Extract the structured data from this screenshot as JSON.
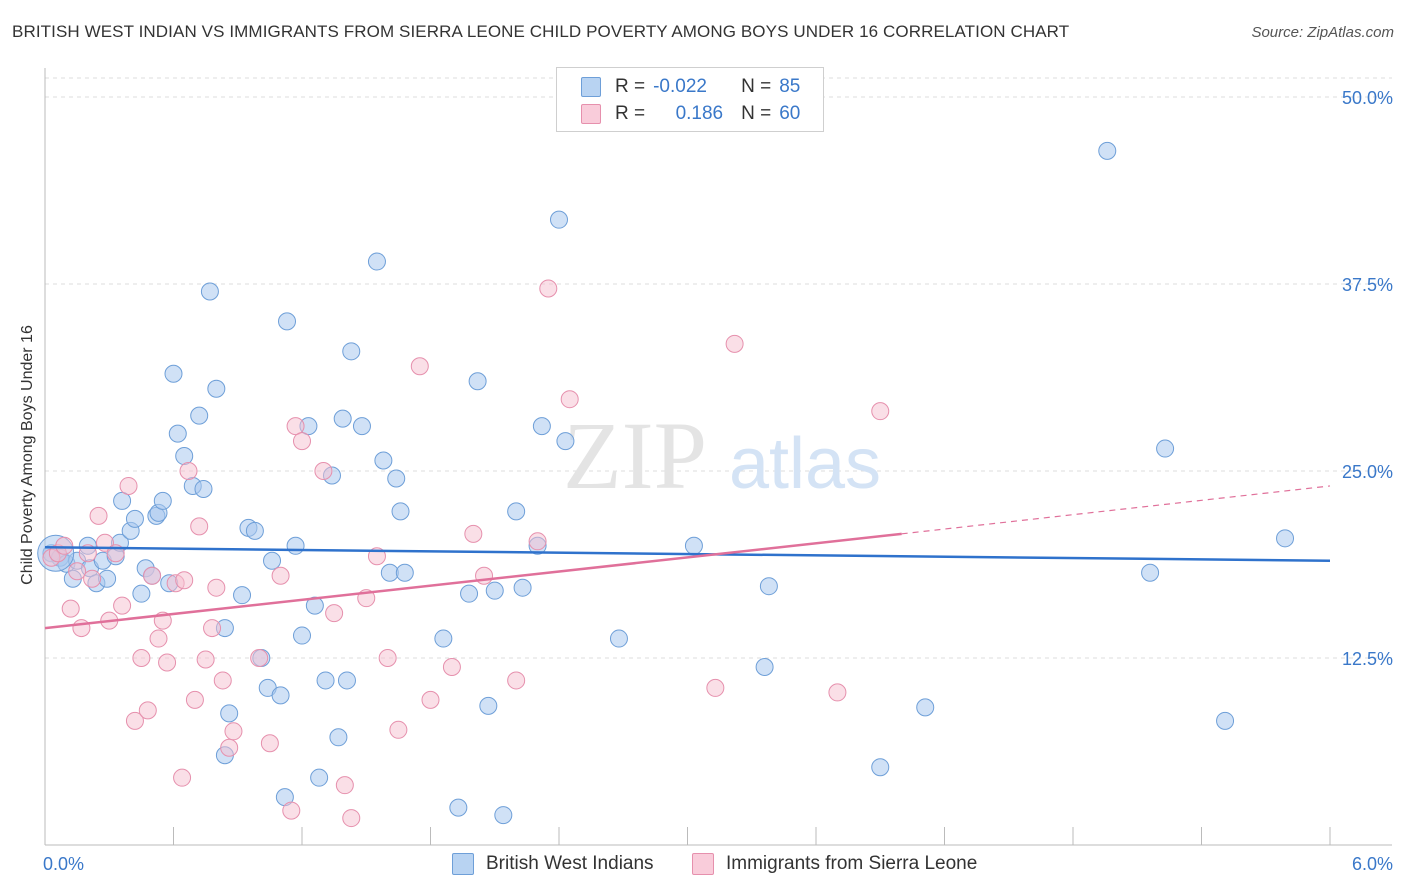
{
  "title": "BRITISH WEST INDIAN VS IMMIGRANTS FROM SIERRA LEONE CHILD POVERTY AMONG BOYS UNDER 16 CORRELATION CHART",
  "source": "Source: ZipAtlas.com",
  "watermark": {
    "zip": "ZIP",
    "atlas": "atlas"
  },
  "legend": {
    "rows": [
      {
        "r_label": "R =",
        "r_value": "-0.022",
        "n_label": "N =",
        "n_value": "85"
      },
      {
        "r_label": "R =",
        "r_value": "0.186",
        "n_label": "N =",
        "n_value": "60"
      }
    ]
  },
  "bottom_legend": {
    "series1": "British West Indians",
    "series2": "Immigrants from Sierra Leone"
  },
  "chart_data": {
    "type": "scatter",
    "title": "BRITISH WEST INDIAN VS IMMIGRANTS FROM SIERRA LEONE CHILD POVERTY AMONG BOYS UNDER 16 CORRELATION CHART",
    "xlabel": "",
    "ylabel": "Child Poverty Among Boys Under 16",
    "xlim": [
      0,
      6
    ],
    "ylim": [
      0,
      50
    ],
    "x_tick_labels": [
      "0.0%",
      "6.0%"
    ],
    "y_ticks": [
      12.5,
      25.0,
      37.5,
      50.0
    ],
    "y_tick_labels": [
      "12.5%",
      "25.0%",
      "37.5%",
      "50.0%"
    ],
    "grid": true,
    "colors": {
      "series1": "#a9c8ee",
      "series1_edge": "#6e9fd8",
      "series1_line": "#2f72cc",
      "series2": "#f6bfd0",
      "series2_edge": "#e690ad",
      "series2_line": "#e0709a"
    },
    "series": [
      {
        "name": "British West Indians",
        "r": -0.022,
        "n": 85,
        "trend": {
          "x": [
            0,
            6
          ],
          "y": [
            19.9,
            19.0
          ]
        },
        "points": [
          [
            0.03,
            19.5
          ],
          [
            0.07,
            19.2
          ],
          [
            0.1,
            18.8
          ],
          [
            0.13,
            17.8
          ],
          [
            0.15,
            19.0
          ],
          [
            0.2,
            20.0
          ],
          [
            0.21,
            18.5
          ],
          [
            0.24,
            17.5
          ],
          [
            0.27,
            19.0
          ],
          [
            0.29,
            17.8
          ],
          [
            0.33,
            19.3
          ],
          [
            0.35,
            20.2
          ],
          [
            0.36,
            23.0
          ],
          [
            0.4,
            21.0
          ],
          [
            0.42,
            21.8
          ],
          [
            0.45,
            16.8
          ],
          [
            0.47,
            18.5
          ],
          [
            0.5,
            18.0
          ],
          [
            0.52,
            22.0
          ],
          [
            0.53,
            22.2
          ],
          [
            0.55,
            23.0
          ],
          [
            0.58,
            17.5
          ],
          [
            0.6,
            31.5
          ],
          [
            0.62,
            27.5
          ],
          [
            0.65,
            26.0
          ],
          [
            0.69,
            24.0
          ],
          [
            0.72,
            28.7
          ],
          [
            0.74,
            23.8
          ],
          [
            0.77,
            37.0
          ],
          [
            0.8,
            30.5
          ],
          [
            0.84,
            14.5
          ],
          [
            0.86,
            8.8
          ],
          [
            0.84,
            6.0
          ],
          [
            0.92,
            16.7
          ],
          [
            0.95,
            21.2
          ],
          [
            0.98,
            21.0
          ],
          [
            1.01,
            12.5
          ],
          [
            1.04,
            10.5
          ],
          [
            1.06,
            19.0
          ],
          [
            1.1,
            10.0
          ],
          [
            1.12,
            3.2
          ],
          [
            1.13,
            35.0
          ],
          [
            1.17,
            20.0
          ],
          [
            1.2,
            14.0
          ],
          [
            1.23,
            28.0
          ],
          [
            1.26,
            16.0
          ],
          [
            1.28,
            4.5
          ],
          [
            1.31,
            11.0
          ],
          [
            1.34,
            24.7
          ],
          [
            1.37,
            7.2
          ],
          [
            1.39,
            28.5
          ],
          [
            1.41,
            11.0
          ],
          [
            1.43,
            33.0
          ],
          [
            1.48,
            28.0
          ],
          [
            1.55,
            39.0
          ],
          [
            1.58,
            25.7
          ],
          [
            1.61,
            18.2
          ],
          [
            1.64,
            24.5
          ],
          [
            1.66,
            22.3
          ],
          [
            1.68,
            18.2
          ],
          [
            1.86,
            13.8
          ],
          [
            1.93,
            2.5
          ],
          [
            1.98,
            16.8
          ],
          [
            2.02,
            31.0
          ],
          [
            2.07,
            9.3
          ],
          [
            2.1,
            17.0
          ],
          [
            2.14,
            2.0
          ],
          [
            2.2,
            22.3
          ],
          [
            2.23,
            17.2
          ],
          [
            2.3,
            20.0
          ],
          [
            2.32,
            28.0
          ],
          [
            2.4,
            41.8
          ],
          [
            2.43,
            27.0
          ],
          [
            2.68,
            13.8
          ],
          [
            3.03,
            20.0
          ],
          [
            3.36,
            11.9
          ],
          [
            3.38,
            17.3
          ],
          [
            3.9,
            5.2
          ],
          [
            4.11,
            9.2
          ],
          [
            4.96,
            46.4
          ],
          [
            5.16,
            18.2
          ],
          [
            5.23,
            26.5
          ],
          [
            5.51,
            8.3
          ],
          [
            5.79,
            20.5
          ],
          [
            0.05,
            19.5
          ]
        ]
      },
      {
        "name": "Immigrants from Sierra Leone",
        "r": 0.186,
        "n": 60,
        "trend": {
          "x": [
            0,
            4.0
          ],
          "y": [
            14.5,
            20.8
          ]
        },
        "trend_dashed": {
          "x": [
            4.0,
            6.0
          ],
          "y": [
            20.8,
            24.0
          ]
        },
        "points": [
          [
            0.03,
            19.2
          ],
          [
            0.06,
            19.5
          ],
          [
            0.09,
            20.0
          ],
          [
            0.12,
            15.8
          ],
          [
            0.15,
            18.3
          ],
          [
            0.17,
            14.5
          ],
          [
            0.2,
            19.5
          ],
          [
            0.22,
            17.8
          ],
          [
            0.25,
            22.0
          ],
          [
            0.28,
            20.2
          ],
          [
            0.3,
            15.0
          ],
          [
            0.33,
            19.5
          ],
          [
            0.36,
            16.0
          ],
          [
            0.39,
            24.0
          ],
          [
            0.42,
            8.3
          ],
          [
            0.45,
            12.5
          ],
          [
            0.48,
            9.0
          ],
          [
            0.5,
            18.0
          ],
          [
            0.53,
            13.8
          ],
          [
            0.55,
            15.0
          ],
          [
            0.57,
            12.2
          ],
          [
            0.61,
            17.5
          ],
          [
            0.64,
            4.5
          ],
          [
            0.67,
            25.0
          ],
          [
            0.7,
            9.7
          ],
          [
            0.72,
            21.3
          ],
          [
            0.75,
            12.4
          ],
          [
            0.78,
            14.5
          ],
          [
            0.8,
            17.2
          ],
          [
            0.83,
            11.0
          ],
          [
            0.86,
            6.5
          ],
          [
            0.88,
            7.6
          ],
          [
            1.0,
            12.5
          ],
          [
            1.05,
            6.8
          ],
          [
            1.1,
            18.0
          ],
          [
            1.15,
            2.3
          ],
          [
            1.17,
            28.0
          ],
          [
            1.2,
            27.0
          ],
          [
            1.3,
            25.0
          ],
          [
            1.35,
            15.5
          ],
          [
            1.4,
            4.0
          ],
          [
            1.43,
            1.8
          ],
          [
            1.5,
            16.5
          ],
          [
            1.55,
            19.3
          ],
          [
            1.6,
            12.5
          ],
          [
            1.65,
            7.7
          ],
          [
            1.75,
            32.0
          ],
          [
            1.8,
            9.7
          ],
          [
            1.9,
            11.9
          ],
          [
            2.0,
            20.8
          ],
          [
            2.05,
            18.0
          ],
          [
            2.2,
            11.0
          ],
          [
            2.3,
            20.3
          ],
          [
            2.35,
            37.2
          ],
          [
            2.45,
            29.8
          ],
          [
            3.13,
            10.5
          ],
          [
            3.22,
            33.5
          ],
          [
            3.7,
            10.2
          ],
          [
            3.9,
            29.0
          ],
          [
            0.65,
            17.7
          ]
        ]
      }
    ]
  }
}
